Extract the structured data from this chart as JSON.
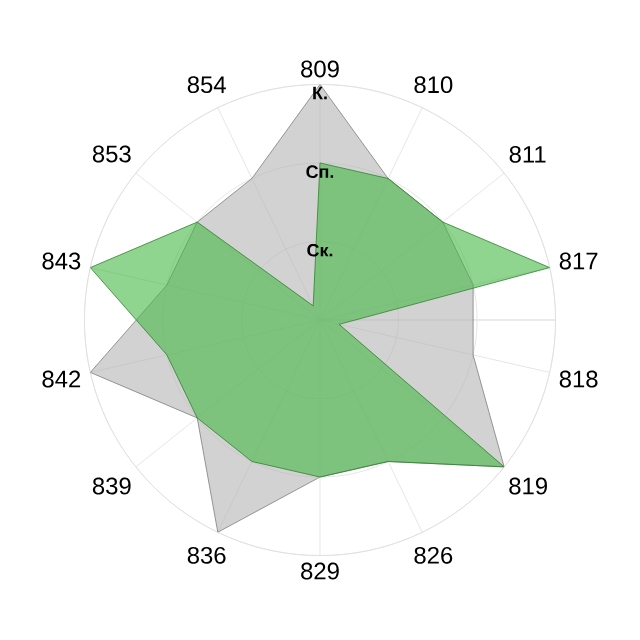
{
  "chart_data": {
    "type": "radar",
    "categories": [
      "809",
      "810",
      "811",
      "817",
      "818",
      "819",
      "826",
      "829",
      "836",
      "839",
      "842",
      "843",
      "853",
      "854"
    ],
    "series": [
      {
        "color": "#b4b4b4",
        "values": [
          3.0,
          2.0,
          2.0,
          2.0,
          2.0,
          3.0,
          2.0,
          2.0,
          3.0,
          2.0,
          3.0,
          2.0,
          2.0,
          2.0
        ]
      },
      {
        "color": "#45b845",
        "values": [
          2.0,
          2.0,
          2.0,
          3.0,
          0.25,
          3.0,
          2.0,
          2.0,
          2.0,
          2.0,
          2.0,
          3.0,
          2.0,
          0.2
        ]
      }
    ],
    "ylim": [
      0,
      3
    ],
    "yticks": [
      {
        "value": 1,
        "label": "Ск."
      },
      {
        "value": 2,
        "label": "Сп."
      },
      {
        "value": 3,
        "label": "К."
      }
    ],
    "grid": true
  }
}
